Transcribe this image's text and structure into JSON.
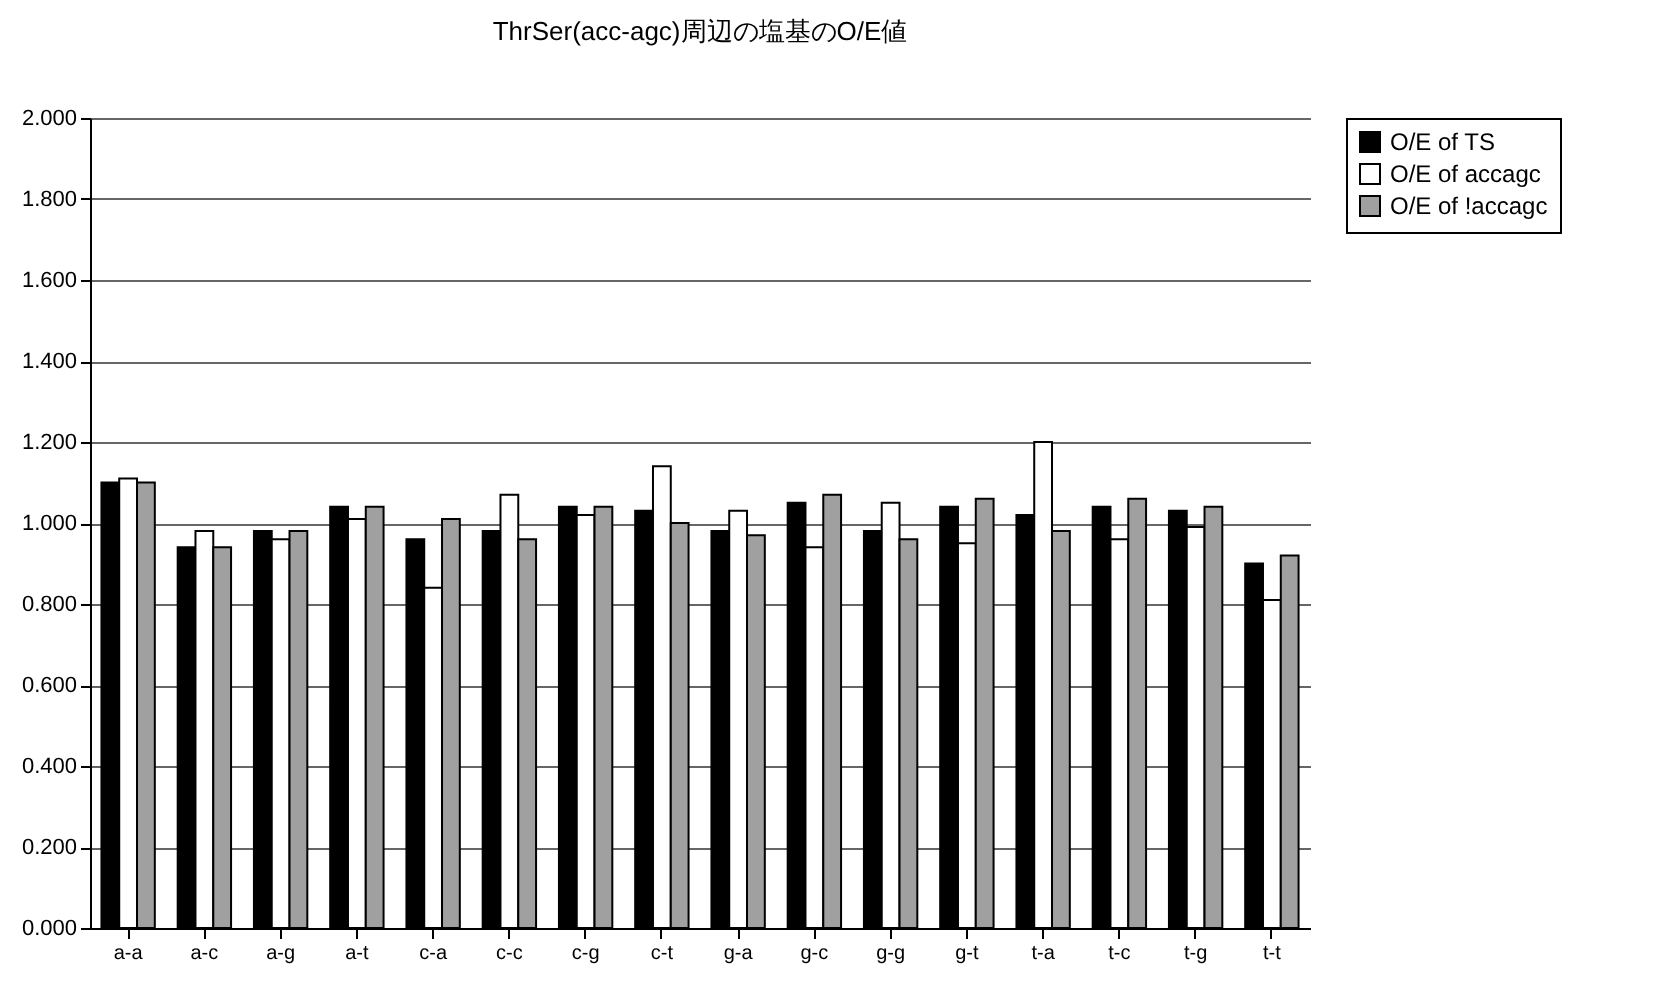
{
  "chart_data": {
    "type": "bar",
    "title": "ThrSer(acc-agc)周辺の塩基のO/E値",
    "categories": [
      "a-a",
      "a-c",
      "a-g",
      "a-t",
      "c-a",
      "c-c",
      "c-g",
      "c-t",
      "g-a",
      "g-c",
      "g-g",
      "g-t",
      "t-a",
      "t-c",
      "t-g",
      "t-t"
    ],
    "series": [
      {
        "name": "O/E of TS",
        "color": "#000000",
        "values": [
          1.1,
          0.94,
          0.98,
          1.04,
          0.96,
          0.98,
          1.04,
          1.03,
          0.98,
          1.05,
          0.98,
          1.04,
          1.02,
          1.04,
          1.03,
          0.9
        ]
      },
      {
        "name": "O/E of accagc",
        "color": "#ffffff",
        "values": [
          1.11,
          0.98,
          0.96,
          1.01,
          0.84,
          1.07,
          1.02,
          1.14,
          1.03,
          0.94,
          1.05,
          0.95,
          1.2,
          0.96,
          0.99,
          0.81
        ]
      },
      {
        "name": "O/E of !accagc",
        "color": "#a0a0a0",
        "values": [
          1.1,
          0.94,
          0.98,
          1.04,
          1.01,
          0.96,
          1.04,
          1.0,
          0.97,
          1.07,
          0.96,
          1.06,
          0.98,
          1.06,
          1.04,
          0.92
        ]
      }
    ],
    "ylim": [
      0,
      2
    ],
    "yticks": [
      {
        "value": 0,
        "label": "0.000"
      },
      {
        "value": 0.2,
        "label": "0.200"
      },
      {
        "value": 0.4,
        "label": "0.400"
      },
      {
        "value": 0.6,
        "label": "0.600"
      },
      {
        "value": 0.8,
        "label": "0.800"
      },
      {
        "value": 1,
        "label": "1.000"
      },
      {
        "value": 1.2,
        "label": "1.200"
      },
      {
        "value": 1.4,
        "label": "1.400"
      },
      {
        "value": 1.6,
        "label": "1.600"
      },
      {
        "value": 1.8,
        "label": "1.800"
      },
      {
        "value": 2,
        "label": "2.000"
      }
    ],
    "grid": "y",
    "legend": "right"
  }
}
